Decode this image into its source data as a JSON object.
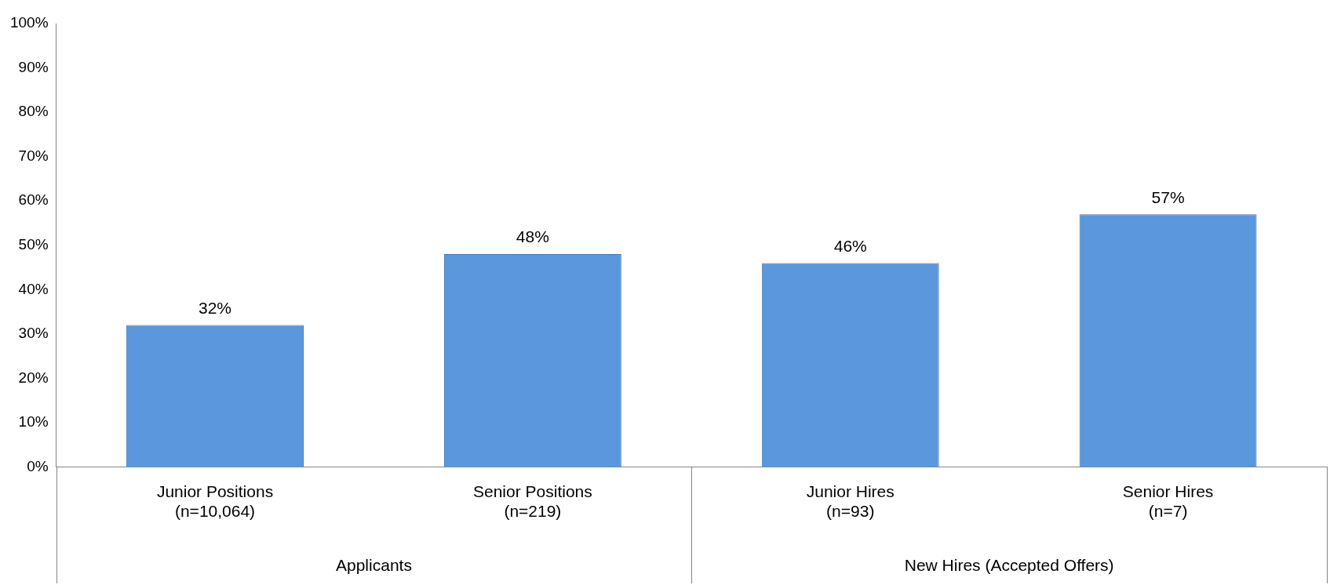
{
  "chart_data": {
    "type": "bar",
    "categories": [
      "Junior Positions (n=10,064)",
      "Senior Positions (n=219)",
      "Junior Hires (n=93)",
      "Senior Hires (n=7)"
    ],
    "values": [
      32,
      48,
      46,
      57
    ],
    "color": "#5a97dc",
    "ylim": [
      0,
      100
    ],
    "yticks": [
      {
        "value": 0,
        "label": "0%"
      },
      {
        "value": 10,
        "label": "10%"
      },
      {
        "value": 20,
        "label": "20%"
      },
      {
        "value": 30,
        "label": "30%"
      },
      {
        "value": 40,
        "label": "40%"
      },
      {
        "value": 50,
        "label": "50%"
      },
      {
        "value": 60,
        "label": "60%"
      },
      {
        "value": 70,
        "label": "70%"
      },
      {
        "value": 80,
        "label": "80%"
      },
      {
        "value": 90,
        "label": "90%"
      },
      {
        "value": 100,
        "label": "100%"
      }
    ],
    "value_labels": [
      "32%",
      "48%",
      "46%",
      "57%"
    ],
    "annotations": [
      "Applicants",
      "New Hires (Accepted Offers)"
    ],
    "grid": false,
    "legend": false
  }
}
